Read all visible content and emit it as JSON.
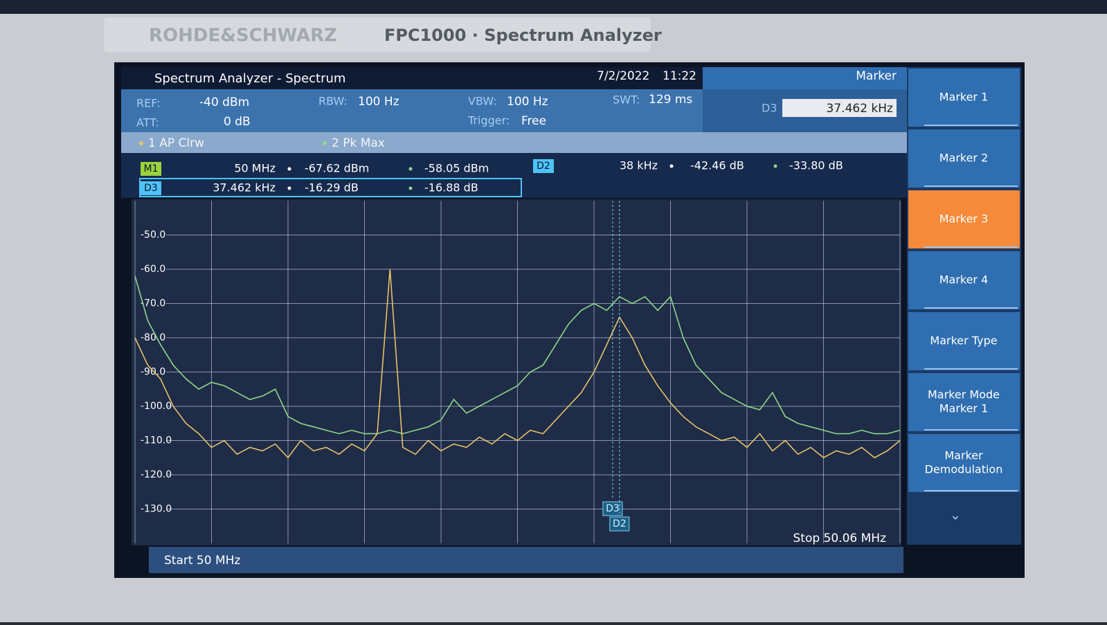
{
  "device": {
    "brand": "ROHDE&SCHWARZ",
    "model": "FPC1000 · Spectrum Analyzer"
  },
  "titlebar": {
    "title": "Spectrum Analyzer - Spectrum",
    "date": "7/2/2022",
    "time": "11:22",
    "panel": "Marker"
  },
  "settings": [
    {
      "label": "REF:",
      "value": "-40 dBm"
    },
    {
      "label": "ATT:",
      "value": "0 dB"
    },
    {
      "label": "RBW:",
      "value": "100 Hz"
    },
    {
      "label": "VBW:",
      "value": "100 Hz"
    },
    {
      "label": "Trigger:",
      "value": "Free"
    },
    {
      "label": "SWT:",
      "value": "129 ms"
    }
  ],
  "marker_input": {
    "label": "D3",
    "value": "37.462 kHz"
  },
  "marker_table": [
    [
      "M1",
      "50 MHz",
      "-67.62 dBm",
      "-58.05 dBm"
    ],
    [
      "D2",
      "38 kHz",
      "-42.46 dB",
      "-33.80 dB"
    ],
    [
      "D3",
      "37.462 kHz",
      "-16.29 dB",
      "-16.88 dB"
    ]
  ],
  "softkeys": [
    {
      "label": [
        "Marker 1"
      ],
      "active": false
    },
    {
      "label": [
        "Marker 2"
      ],
      "active": false
    },
    {
      "label": [
        "Marker 3"
      ],
      "active": true
    },
    {
      "label": [
        "Marker 4"
      ],
      "active": false
    },
    {
      "label": [
        "Marker Type"
      ],
      "active": false
    },
    {
      "label": [
        "Marker Mode",
        "Marker 1"
      ],
      "active": false
    },
    {
      "label": [
        "Marker",
        "Demodulation"
      ],
      "active": false
    }
  ],
  "chart_data": {
    "type": "line",
    "start_label": "Start 50 MHz",
    "stop_label": "Stop 50.06 MHz",
    "xlim": [
      50,
      50.06
    ],
    "xticks": [
      50,
      50.006,
      50.012,
      50.018,
      50.024,
      50.03,
      50.036,
      50.042,
      50.048,
      50.054,
      50.06
    ],
    "ylim": [
      -140,
      -40
    ],
    "yticks": [
      {
        "value": -50,
        "label": "-50.0"
      },
      {
        "value": -60,
        "label": "-60.0"
      },
      {
        "value": -70,
        "label": "-70.0"
      },
      {
        "value": -80,
        "label": "-80.0"
      },
      {
        "value": -90,
        "label": "-90.0"
      },
      {
        "value": -100,
        "label": "-100.0"
      },
      {
        "value": -110,
        "label": "-110.0"
      },
      {
        "value": -120,
        "label": "-120.0"
      },
      {
        "value": -130,
        "label": "-130.0"
      }
    ],
    "grid": true,
    "x": [
      50,
      50.001,
      50.002,
      50.003,
      50.004,
      50.005,
      50.006,
      50.007,
      50.008,
      50.009,
      50.01,
      50.011,
      50.012,
      50.013,
      50.014,
      50.015,
      50.016,
      50.017,
      50.018,
      50.019,
      50.02,
      50.021,
      50.022,
      50.023,
      50.024,
      50.025,
      50.026,
      50.027,
      50.028,
      50.029,
      50.03,
      50.031,
      50.032,
      50.033,
      50.034,
      50.035,
      50.036,
      50.037,
      50.038,
      50.039,
      50.04,
      50.041,
      50.042,
      50.043,
      50.044,
      50.045,
      50.046,
      50.047,
      50.048,
      50.049,
      50.05,
      50.051,
      50.052,
      50.053,
      50.054,
      50.055,
      50.056,
      50.057,
      50.058,
      50.059,
      50.06
    ],
    "series": [
      {
        "name": "1 AP Clrw",
        "color": "#e8c36a",
        "values": [
          -80,
          -88,
          -92,
          -100,
          -105,
          -108,
          -112,
          -110,
          -114,
          -112,
          -113,
          -111,
          -115,
          -110,
          -113,
          -112,
          -114,
          -111,
          -113,
          -108,
          -60,
          -112,
          -114,
          -110,
          -113,
          -111,
          -112,
          -109,
          -111,
          -108,
          -110,
          -107,
          -108,
          -104,
          -100,
          -96,
          -90,
          -82,
          -74,
          -80,
          -88,
          -94,
          -99,
          -103,
          -106,
          -108,
          -110,
          -109,
          -112,
          -108,
          -113,
          -110,
          -114,
          -112,
          -115,
          -113,
          -114,
          -112,
          -115,
          -113,
          -110
        ]
      },
      {
        "name": "2 Pk Max",
        "color": "#8fd98a",
        "values": [
          -62,
          -75,
          -82,
          -88,
          -92,
          -95,
          -93,
          -94,
          -96,
          -98,
          -97,
          -95,
          -103,
          -105,
          -106,
          -107,
          -108,
          -107,
          -108,
          -108,
          -107,
          -108,
          -107,
          -106,
          -104,
          -98,
          -102,
          -100,
          -98,
          -96,
          -94,
          -90,
          -88,
          -82,
          -76,
          -72,
          -70,
          -72,
          -68,
          -70,
          -68,
          -72,
          -68,
          -80,
          -88,
          -92,
          -96,
          -98,
          -100,
          -101,
          -96,
          -103,
          -105,
          -106,
          -107,
          -108,
          -108,
          -107,
          -108,
          -108,
          -107
        ]
      }
    ],
    "markers": [
      {
        "label": "D3",
        "x": 50.037462
      },
      {
        "label": "D2",
        "x": 50.038
      }
    ]
  }
}
